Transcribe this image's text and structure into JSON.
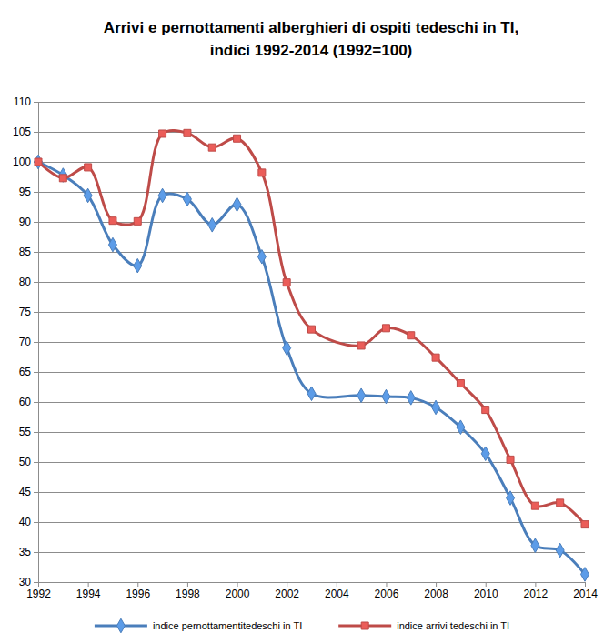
{
  "chart_data": {
    "type": "line",
    "title": "Arrivi e pernottamenti alberghieri di ospiti tedeschi in TI, indici 1992-2014 (1992=100)",
    "x": [
      1992,
      1993,
      1994,
      1995,
      1996,
      1997,
      1998,
      1999,
      2000,
      2001,
      2002,
      2003,
      2005,
      2006,
      2007,
      2008,
      2009,
      2010,
      2011,
      2012,
      2013,
      2014
    ],
    "xlim": [
      1992,
      2014
    ],
    "xticks": [
      1992,
      1994,
      1996,
      1998,
      2000,
      2002,
      2004,
      2006,
      2008,
      2010,
      2012,
      2014
    ],
    "ylim": [
      30,
      110
    ],
    "yticks": [
      30,
      35,
      40,
      45,
      50,
      55,
      60,
      65,
      70,
      75,
      80,
      85,
      90,
      95,
      100,
      105,
      110
    ],
    "grid": true,
    "legend": "bottom",
    "series": [
      {
        "name": "indice pernottamentitedeschi in TI",
        "color": "#4a7ebb",
        "marker": "diamond",
        "values": [
          100,
          97.8,
          94.4,
          86.2,
          82.7,
          94.4,
          93.8,
          89.5,
          92.9,
          84.2,
          69,
          61.4,
          61.1,
          60.9,
          60.7,
          59.1,
          55.8,
          51.4,
          44,
          36.1,
          35.3,
          31.3
        ]
      },
      {
        "name": "indice arrivi tedeschi in TI",
        "color": "#be4b48",
        "marker": "square",
        "values": [
          100,
          97.3,
          99.1,
          90.2,
          90.1,
          104.7,
          104.8,
          102.4,
          103.9,
          98.2,
          79.9,
          72.1,
          69.4,
          72.3,
          71.1,
          67.4,
          63.1,
          58.7,
          50.4,
          42.7,
          43.2,
          39.6
        ]
      }
    ]
  }
}
